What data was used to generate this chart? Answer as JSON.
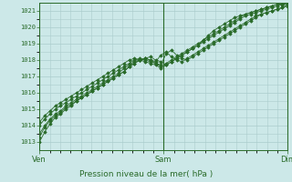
{
  "title": "Pression niveau de la mer( hPa )",
  "bg_color": "#cce8e8",
  "grid_color": "#aacccc",
  "line_color": "#2a6b2a",
  "marker_color": "#2a6b2a",
  "ylim": [
    1012.5,
    1021.5
  ],
  "yticks": [
    1013,
    1014,
    1015,
    1016,
    1017,
    1018,
    1019,
    1020,
    1021
  ],
  "xlim": [
    0,
    48
  ],
  "xtick_positions": [
    0,
    24,
    48
  ],
  "xtick_labels": [
    "Ven",
    "Sam",
    "Dim"
  ],
  "xlabel": "Pression niveau de la mer( hPa )",
  "series": [
    [
      1013.0,
      1013.6,
      1014.1,
      1014.5,
      1014.7,
      1015.0,
      1015.2,
      1015.5,
      1015.7,
      1015.9,
      1016.1,
      1016.3,
      1016.5,
      1016.7,
      1016.9,
      1017.1,
      1017.3,
      1017.6,
      1017.8,
      1018.0,
      1018.1,
      1018.2,
      1018.0,
      1017.9,
      1017.7,
      1017.9,
      1018.1,
      1018.3,
      1018.5,
      1018.7,
      1018.9,
      1019.1,
      1019.3,
      1019.5,
      1019.7,
      1019.9,
      1020.1,
      1020.3,
      1020.5,
      1020.7,
      1020.8,
      1020.9,
      1021.0,
      1021.1,
      1021.2,
      1021.3,
      1021.4,
      1021.4
    ],
    [
      1013.3,
      1013.9,
      1014.3,
      1014.6,
      1014.8,
      1015.1,
      1015.3,
      1015.5,
      1015.7,
      1015.9,
      1016.1,
      1016.3,
      1016.5,
      1016.7,
      1016.9,
      1017.1,
      1017.3,
      1017.6,
      1017.8,
      1018.0,
      1018.1,
      1018.0,
      1017.9,
      1018.3,
      1018.5,
      1018.2,
      1018.0,
      1017.9,
      1018.1,
      1018.3,
      1018.5,
      1018.7,
      1018.9,
      1019.1,
      1019.3,
      1019.5,
      1019.7,
      1019.9,
      1020.1,
      1020.3,
      1020.5,
      1020.7,
      1020.8,
      1020.9,
      1021.0,
      1021.1,
      1021.2,
      1021.3
    ],
    [
      1013.5,
      1014.0,
      1014.4,
      1014.7,
      1014.9,
      1015.2,
      1015.4,
      1015.6,
      1015.8,
      1016.0,
      1016.2,
      1016.4,
      1016.6,
      1016.8,
      1017.0,
      1017.2,
      1017.5,
      1017.7,
      1017.9,
      1018.0,
      1018.1,
      1018.0,
      1017.8,
      1017.7,
      1018.4,
      1018.6,
      1018.3,
      1018.1,
      1018.0,
      1018.2,
      1018.4,
      1018.6,
      1018.8,
      1019.0,
      1019.2,
      1019.4,
      1019.6,
      1019.8,
      1020.0,
      1020.2,
      1020.4,
      1020.6,
      1020.8,
      1020.9,
      1021.0,
      1021.1,
      1021.2,
      1021.4
    ],
    [
      1014.0,
      1014.4,
      1014.7,
      1015.0,
      1015.2,
      1015.4,
      1015.6,
      1015.8,
      1016.0,
      1016.2,
      1016.4,
      1016.6,
      1016.8,
      1017.0,
      1017.2,
      1017.4,
      1017.6,
      1017.8,
      1018.0,
      1018.1,
      1018.0,
      1017.9,
      1017.8,
      1017.6,
      1017.8,
      1018.0,
      1018.2,
      1018.4,
      1018.6,
      1018.8,
      1019.0,
      1019.2,
      1019.4,
      1019.6,
      1019.8,
      1020.0,
      1020.2,
      1020.4,
      1020.6,
      1020.8,
      1020.9,
      1021.0,
      1021.1,
      1021.2,
      1021.3,
      1021.4,
      1021.4,
      1021.5
    ],
    [
      1014.2,
      1014.6,
      1014.9,
      1015.2,
      1015.4,
      1015.6,
      1015.8,
      1016.0,
      1016.2,
      1016.4,
      1016.6,
      1016.8,
      1017.0,
      1017.2,
      1017.4,
      1017.6,
      1017.8,
      1018.0,
      1018.1,
      1018.0,
      1017.9,
      1017.8,
      1017.7,
      1017.5,
      1017.7,
      1017.9,
      1018.1,
      1018.3,
      1018.5,
      1018.7,
      1018.9,
      1019.2,
      1019.5,
      1019.8,
      1020.0,
      1020.2,
      1020.4,
      1020.6,
      1020.7,
      1020.8,
      1020.9,
      1021.0,
      1021.1,
      1021.2,
      1021.3,
      1021.4,
      1021.4,
      1021.5
    ]
  ]
}
